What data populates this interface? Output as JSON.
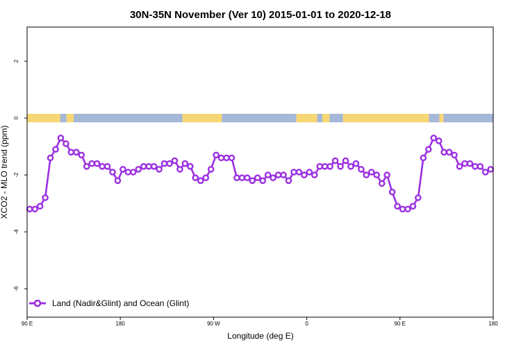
{
  "chart_data": {
    "type": "line",
    "title": "30N-35N November (Ver 10)   2015-01-01 to 2020-12-18",
    "xlabel": "Longitude (deg E)",
    "ylabel": "XCO2 - MLO trend (ppm)",
    "xlim": [
      90,
      540
    ],
    "ylim": [
      -7,
      3.2
    ],
    "x_ticks": [
      {
        "value": 90,
        "label": "90 E"
      },
      {
        "value": 180,
        "label": "180"
      },
      {
        "value": 270,
        "label": "90 W"
      },
      {
        "value": 360,
        "label": "0"
      },
      {
        "value": 450,
        "label": "90 E"
      },
      {
        "value": 540,
        "label": "180"
      }
    ],
    "y_ticks": [
      {
        "value": 2,
        "label": "2"
      },
      {
        "value": 0,
        "label": "0"
      },
      {
        "value": -2,
        "label": "-2"
      },
      {
        "value": -4,
        "label": "-4"
      },
      {
        "value": -6,
        "label": "-6"
      }
    ],
    "colors": {
      "series": "#9b30e0",
      "land": "#f7d774",
      "ocean": "#a6b8d8"
    },
    "land_mask": [
      {
        "from": 90,
        "to": 122,
        "type": "land"
      },
      {
        "from": 122,
        "to": 128,
        "type": "ocean"
      },
      {
        "from": 128,
        "to": 135,
        "type": "land"
      },
      {
        "from": 135,
        "to": 240,
        "type": "ocean"
      },
      {
        "from": 240,
        "to": 278,
        "type": "land"
      },
      {
        "from": 278,
        "to": 350,
        "type": "ocean"
      },
      {
        "from": 350,
        "to": 370,
        "type": "land"
      },
      {
        "from": 370,
        "to": 375,
        "type": "ocean"
      },
      {
        "from": 375,
        "to": 382,
        "type": "land"
      },
      {
        "from": 382,
        "to": 395,
        "type": "ocean"
      },
      {
        "from": 395,
        "to": 478,
        "type": "land"
      },
      {
        "from": 478,
        "to": 488,
        "type": "ocean"
      },
      {
        "from": 488,
        "to": 492,
        "type": "land"
      },
      {
        "from": 492,
        "to": 540,
        "type": "ocean"
      }
    ],
    "series": [
      {
        "name": "Land (Nadir&Glint) and Ocean (Glint)",
        "x": [
          92.5,
          97.5,
          102.5,
          107.5,
          112.5,
          117.5,
          122.5,
          127.5,
          132.5,
          137.5,
          142.5,
          147.5,
          152.5,
          157.5,
          162.5,
          167.5,
          172.5,
          177.5,
          182.5,
          187.5,
          192.5,
          197.5,
          202.5,
          207.5,
          212.5,
          217.5,
          222.5,
          227.5,
          232.5,
          237.5,
          242.5,
          247.5,
          252.5,
          257.5,
          262.5,
          267.5,
          272.5,
          277.5,
          282.5,
          287.5,
          292.5,
          297.5,
          302.5,
          307.5,
          312.5,
          317.5,
          322.5,
          327.5,
          332.5,
          337.5,
          342.5,
          347.5,
          352.5,
          357.5,
          362.5,
          367.5,
          372.5,
          377.5,
          382.5,
          387.5,
          392.5,
          397.5,
          402.5,
          407.5,
          412.5,
          417.5,
          422.5,
          427.5,
          432.5,
          437.5,
          442.5,
          447.5,
          452.5,
          457.5,
          462.5,
          467.5,
          472.5,
          477.5,
          482.5,
          487.5,
          492.5,
          497.5,
          502.5,
          507.5,
          512.5,
          517.5,
          522.5,
          527.5,
          532.5,
          537.5
        ],
        "y": [
          -3.2,
          -3.2,
          -3.1,
          -2.8,
          -1.4,
          -1.1,
          -0.7,
          -0.9,
          -1.2,
          -1.2,
          -1.3,
          -1.7,
          -1.6,
          -1.6,
          -1.7,
          -1.7,
          -1.9,
          -2.2,
          -1.8,
          -1.9,
          -1.9,
          -1.8,
          -1.7,
          -1.7,
          -1.7,
          -1.8,
          -1.6,
          -1.6,
          -1.5,
          -1.8,
          -1.6,
          -1.7,
          -2.1,
          -2.2,
          -2.1,
          -1.8,
          -1.3,
          -1.4,
          -1.4,
          -1.4,
          -2.1,
          -2.1,
          -2.1,
          -2.2,
          -2.1,
          -2.2,
          -2.0,
          -2.1,
          -2.0,
          -2.0,
          -2.2,
          -1.9,
          -1.9,
          -2.0,
          -1.9,
          -2.0,
          -1.7,
          -1.7,
          -1.7,
          -1.5,
          -1.7,
          -1.5,
          -1.7,
          -1.6,
          -1.8,
          -2.0,
          -1.9,
          -2.0,
          -2.3,
          -2.0,
          -2.6,
          -3.1,
          -3.2,
          -3.2,
          -3.1,
          -2.8,
          -1.4,
          -1.1,
          -0.7,
          -0.8,
          -1.2,
          -1.2,
          -1.3,
          -1.7,
          -1.6,
          -1.6,
          -1.7,
          -1.7,
          -1.9,
          -1.8
        ]
      }
    ]
  }
}
